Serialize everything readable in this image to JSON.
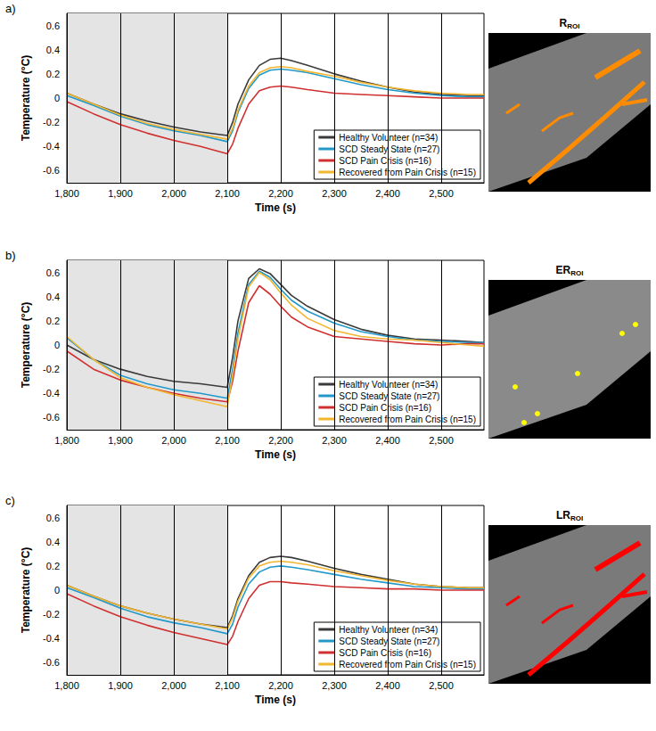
{
  "chart_data": [
    {
      "type": "line",
      "panel_label": "a)",
      "image_title": {
        "text": "R",
        "subscript": "ROI"
      },
      "x_label": "Time (s)",
      "y_label": "Temperature (°C)",
      "x": [
        1800,
        1850,
        1900,
        1950,
        2000,
        2050,
        2100,
        2110,
        2120,
        2140,
        2160,
        2180,
        2200,
        2220,
        2250,
        2300,
        2350,
        2400,
        2450,
        2500,
        2550,
        2580
      ],
      "xlim": [
        1800,
        2580
      ],
      "xticks": [
        1800,
        1900,
        2000,
        2100,
        2200,
        2300,
        2400,
        2500
      ],
      "ylim": [
        -0.7,
        0.7
      ],
      "yticks": [
        -0.6,
        -0.4,
        -0.2,
        0,
        0.2,
        0.4,
        0.6
      ],
      "grid": "x",
      "shaded": [
        1800,
        2100
      ],
      "legend": "lower right",
      "series": [
        {
          "name": "Healthy Volunteer (n=34)",
          "color": "#3a3a3a",
          "values": [
            0.04,
            -0.05,
            -0.13,
            -0.19,
            -0.24,
            -0.28,
            -0.31,
            -0.2,
            -0.05,
            0.15,
            0.27,
            0.32,
            0.33,
            0.31,
            0.27,
            0.2,
            0.14,
            0.09,
            0.05,
            0.03,
            0.02,
            0.02
          ]
        },
        {
          "name": "SCD Steady State (n=27)",
          "color": "#2399c9",
          "values": [
            0.02,
            -0.06,
            -0.15,
            -0.22,
            -0.27,
            -0.31,
            -0.36,
            -0.27,
            -0.12,
            0.08,
            0.19,
            0.23,
            0.24,
            0.23,
            0.21,
            0.16,
            0.11,
            0.07,
            0.04,
            0.02,
            0.01,
            0.01
          ]
        },
        {
          "name": "SCD Pain Crisis (n=16)",
          "color": "#d03030",
          "values": [
            -0.03,
            -0.13,
            -0.22,
            -0.29,
            -0.35,
            -0.4,
            -0.46,
            -0.38,
            -0.25,
            -0.05,
            0.06,
            0.09,
            0.1,
            0.09,
            0.07,
            0.04,
            0.03,
            0.02,
            0.01,
            0,
            0,
            0
          ]
        },
        {
          "name": "Recovered from Pain Crisis (n=15)",
          "color": "#f2b630",
          "values": [
            0.04,
            -0.05,
            -0.14,
            -0.21,
            -0.26,
            -0.3,
            -0.34,
            -0.25,
            -0.1,
            0.1,
            0.21,
            0.25,
            0.26,
            0.25,
            0.22,
            0.18,
            0.13,
            0.09,
            0.06,
            0.04,
            0.03,
            0.03
          ]
        }
      ]
    },
    {
      "type": "line",
      "panel_label": "b)",
      "image_title": {
        "text": "ER",
        "subscript": "ROI"
      },
      "x_label": "Time (s)",
      "y_label": "Temperature (°C)",
      "x": [
        1800,
        1850,
        1900,
        1950,
        2000,
        2050,
        2100,
        2110,
        2120,
        2140,
        2160,
        2180,
        2200,
        2220,
        2250,
        2300,
        2350,
        2400,
        2450,
        2500,
        2550,
        2580
      ],
      "xlim": [
        1800,
        2580
      ],
      "xticks": [
        1800,
        1900,
        2000,
        2100,
        2200,
        2300,
        2400,
        2500
      ],
      "ylim": [
        -0.7,
        0.7
      ],
      "yticks": [
        -0.6,
        -0.4,
        -0.2,
        0,
        0.2,
        0.4,
        0.6
      ],
      "grid": "x",
      "shaded": [
        1800,
        2100
      ],
      "legend": "lower right",
      "series": [
        {
          "name": "Healthy Volunteer (n=34)",
          "color": "#3a3a3a",
          "values": [
            0,
            -0.12,
            -0.2,
            -0.26,
            -0.3,
            -0.32,
            -0.35,
            -0.1,
            0.2,
            0.55,
            0.63,
            0.59,
            0.5,
            0.41,
            0.32,
            0.21,
            0.13,
            0.08,
            0.05,
            0.04,
            0.03,
            0.02
          ]
        },
        {
          "name": "SCD Steady State (n=27)",
          "color": "#2399c9",
          "values": [
            0.06,
            -0.12,
            -0.25,
            -0.32,
            -0.37,
            -0.4,
            -0.44,
            -0.2,
            0.1,
            0.5,
            0.61,
            0.56,
            0.46,
            0.37,
            0.28,
            0.18,
            0.11,
            0.07,
            0.04,
            0.03,
            0.02,
            0.02
          ]
        },
        {
          "name": "SCD Pain Crisis (n=16)",
          "color": "#d03030",
          "values": [
            -0.05,
            -0.2,
            -0.29,
            -0.35,
            -0.4,
            -0.44,
            -0.47,
            -0.3,
            -0.05,
            0.35,
            0.49,
            0.42,
            0.32,
            0.23,
            0.15,
            0.07,
            0.05,
            0.03,
            0.01,
            0,
            0.01,
            0.01
          ]
        },
        {
          "name": "Recovered from Pain Crisis (n=15)",
          "color": "#f2b630",
          "values": [
            0.07,
            -0.12,
            -0.27,
            -0.35,
            -0.41,
            -0.46,
            -0.51,
            -0.25,
            0.05,
            0.48,
            0.6,
            0.54,
            0.43,
            0.33,
            0.22,
            0.12,
            0.07,
            0.05,
            0.04,
            0.02,
            0,
            -0.01
          ]
        }
      ]
    },
    {
      "type": "line",
      "panel_label": "c)",
      "image_title": {
        "text": "LR",
        "subscript": "ROI"
      },
      "x_label": "Time (s)",
      "y_label": "Temperature (°C)",
      "x": [
        1800,
        1850,
        1900,
        1950,
        2000,
        2050,
        2100,
        2110,
        2120,
        2140,
        2160,
        2180,
        2200,
        2220,
        2250,
        2300,
        2350,
        2400,
        2450,
        2500,
        2550,
        2580
      ],
      "xlim": [
        1800,
        2580
      ],
      "xticks": [
        1800,
        1900,
        2000,
        2100,
        2200,
        2300,
        2400,
        2500
      ],
      "ylim": [
        -0.7,
        0.7
      ],
      "yticks": [
        -0.6,
        -0.4,
        -0.2,
        0,
        0.2,
        0.4,
        0.6
      ],
      "grid": "x",
      "shaded": [
        1800,
        2100
      ],
      "legend": "lower right",
      "series": [
        {
          "name": "Healthy Volunteer (n=34)",
          "color": "#3a3a3a",
          "values": [
            0.04,
            -0.05,
            -0.13,
            -0.19,
            -0.24,
            -0.28,
            -0.31,
            -0.21,
            -0.07,
            0.12,
            0.23,
            0.27,
            0.28,
            0.27,
            0.24,
            0.18,
            0.13,
            0.09,
            0.05,
            0.03,
            0.02,
            0.02
          ]
        },
        {
          "name": "SCD Steady State (n=27)",
          "color": "#2399c9",
          "values": [
            0.02,
            -0.06,
            -0.15,
            -0.22,
            -0.27,
            -0.31,
            -0.36,
            -0.28,
            -0.14,
            0.05,
            0.15,
            0.19,
            0.2,
            0.19,
            0.17,
            0.13,
            0.09,
            0.06,
            0.03,
            0.02,
            0.01,
            0.01
          ]
        },
        {
          "name": "SCD Pain Crisis (n=16)",
          "color": "#d03030",
          "values": [
            -0.03,
            -0.13,
            -0.22,
            -0.29,
            -0.35,
            -0.4,
            -0.45,
            -0.38,
            -0.26,
            -0.07,
            0.04,
            0.07,
            0.07,
            0.06,
            0.05,
            0.03,
            0.02,
            0.01,
            0.01,
            0,
            0,
            0
          ]
        },
        {
          "name": "Recovered from Pain Crisis (n=15)",
          "color": "#f2b630",
          "values": [
            0.04,
            -0.05,
            -0.13,
            -0.19,
            -0.24,
            -0.28,
            -0.32,
            -0.23,
            -0.09,
            0.1,
            0.2,
            0.23,
            0.24,
            0.23,
            0.21,
            0.16,
            0.12,
            0.08,
            0.05,
            0.03,
            0.02,
            0.02
          ]
        }
      ]
    }
  ]
}
